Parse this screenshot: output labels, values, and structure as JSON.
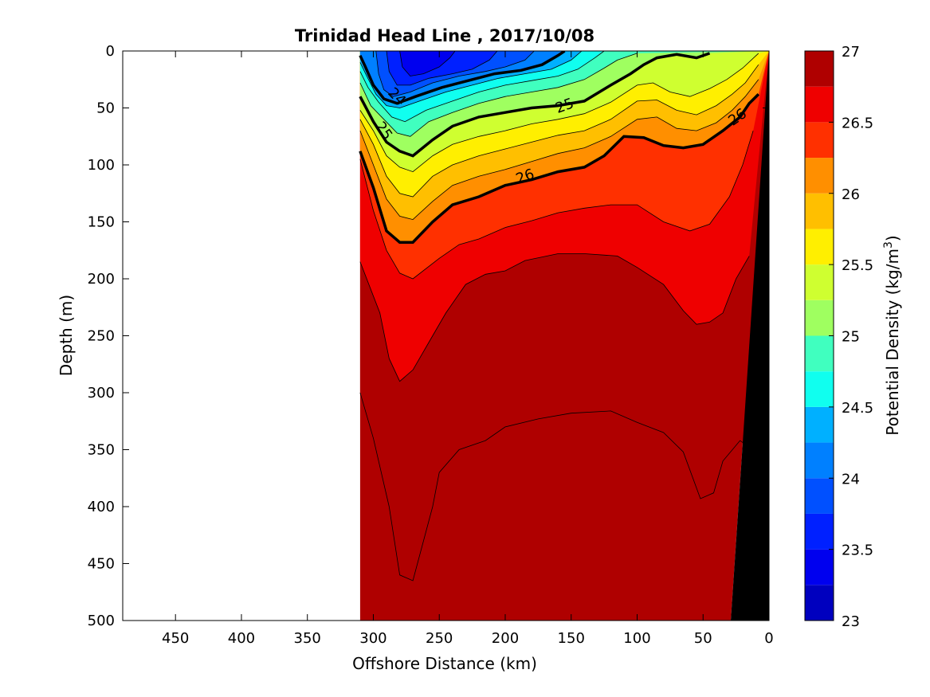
{
  "chart_data": {
    "type": "contour",
    "title": "Trinidad Head Line , 2017/10/08",
    "xlabel": "Offshore Distance (km)",
    "ylabel": "Depth (m)",
    "xlim": [
      490,
      0
    ],
    "ylim": [
      0,
      500
    ],
    "x_reversed": true,
    "y_reversed": true,
    "x_ticks": [
      "450",
      "400",
      "350",
      "300",
      "250",
      "200",
      "150",
      "100",
      "50",
      "0"
    ],
    "y_ticks": [
      "0",
      "50",
      "100",
      "150",
      "200",
      "250",
      "300",
      "350",
      "400",
      "450",
      "500"
    ],
    "colorbar": {
      "label_main": "Potential Density (kg/m",
      "label_sup": "3",
      "label_end": ")",
      "range": [
        23,
        27
      ],
      "ticks": [
        "27",
        "26.5",
        "26",
        "25.5",
        "25",
        "24.5",
        "24",
        "23.5",
        "23"
      ],
      "levels": [
        23.0,
        23.25,
        23.5,
        23.75,
        24.0,
        24.25,
        24.5,
        24.75,
        25.0,
        25.25,
        25.5,
        25.75,
        26.0,
        26.25,
        26.5,
        26.75
      ],
      "colors": [
        "#00008f",
        "#0000bf",
        "#0000ef",
        "#0020ff",
        "#0050ff",
        "#0080ff",
        "#00b0ff",
        "#10ffef",
        "#40ffbf",
        "#9fff60",
        "#cfff30",
        "#ffef00",
        "#ffbf00",
        "#ff8f00",
        "#ff3000",
        "#ef0000",
        "#af0000"
      ]
    },
    "contour_labels": [
      "24",
      "25",
      "25",
      "26",
      "26"
    ],
    "data_extent_km": [
      310,
      0
    ],
    "bathymetry": {
      "color": "#000000",
      "surface_km": 0,
      "bottom_km": 29
    }
  }
}
